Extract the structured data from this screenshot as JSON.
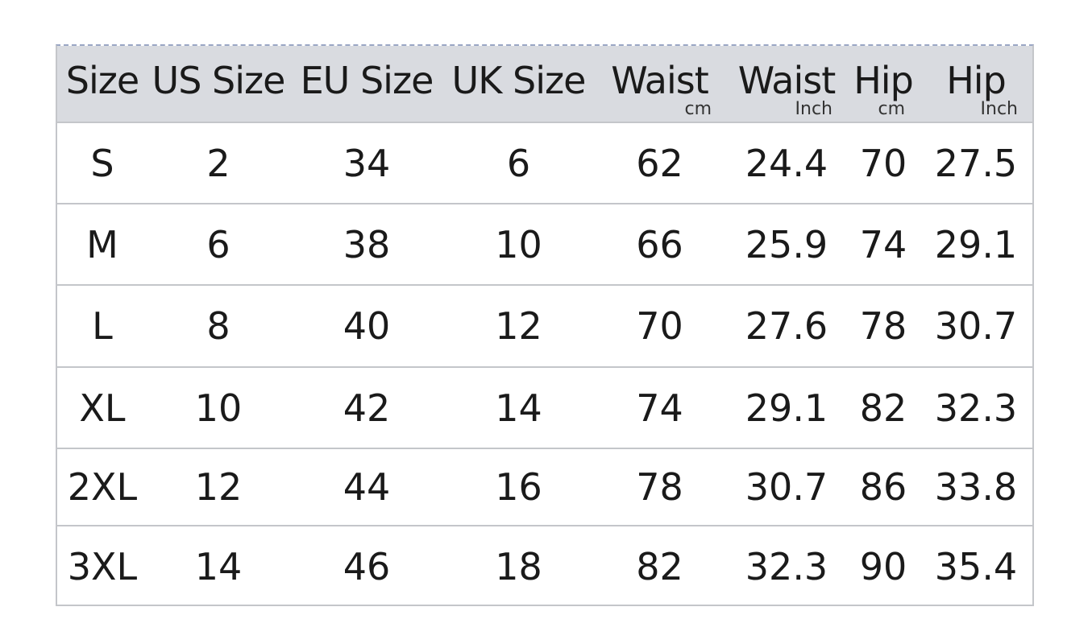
{
  "table": {
    "header": [
      {
        "label": "Size"
      },
      {
        "label": "US Size"
      },
      {
        "label": "EU Size"
      },
      {
        "label": "UK Size"
      },
      {
        "label": "Waist",
        "unit": "cm"
      },
      {
        "label": "Waist",
        "unit": "Inch"
      },
      {
        "label": "Hip",
        "unit": "cm"
      },
      {
        "label": "Hip",
        "unit": "Inch"
      }
    ],
    "rows": [
      [
        "S",
        "2",
        "34",
        "6",
        "62",
        "24.4",
        "70",
        "27.5"
      ],
      [
        "M",
        "6",
        "38",
        "10",
        "66",
        "25.9",
        "74",
        "29.1"
      ],
      [
        "L",
        "8",
        "40",
        "12",
        "70",
        "27.6",
        "78",
        "30.7"
      ],
      [
        "XL",
        "10",
        "42",
        "14",
        "74",
        "29.1",
        "82",
        "32.3"
      ],
      [
        "2XL",
        "12",
        "44",
        "16",
        "78",
        "30.7",
        "86",
        "33.8"
      ],
      [
        "3XL",
        "14",
        "46",
        "18",
        "82",
        "32.3",
        "90",
        "35.4"
      ]
    ]
  }
}
